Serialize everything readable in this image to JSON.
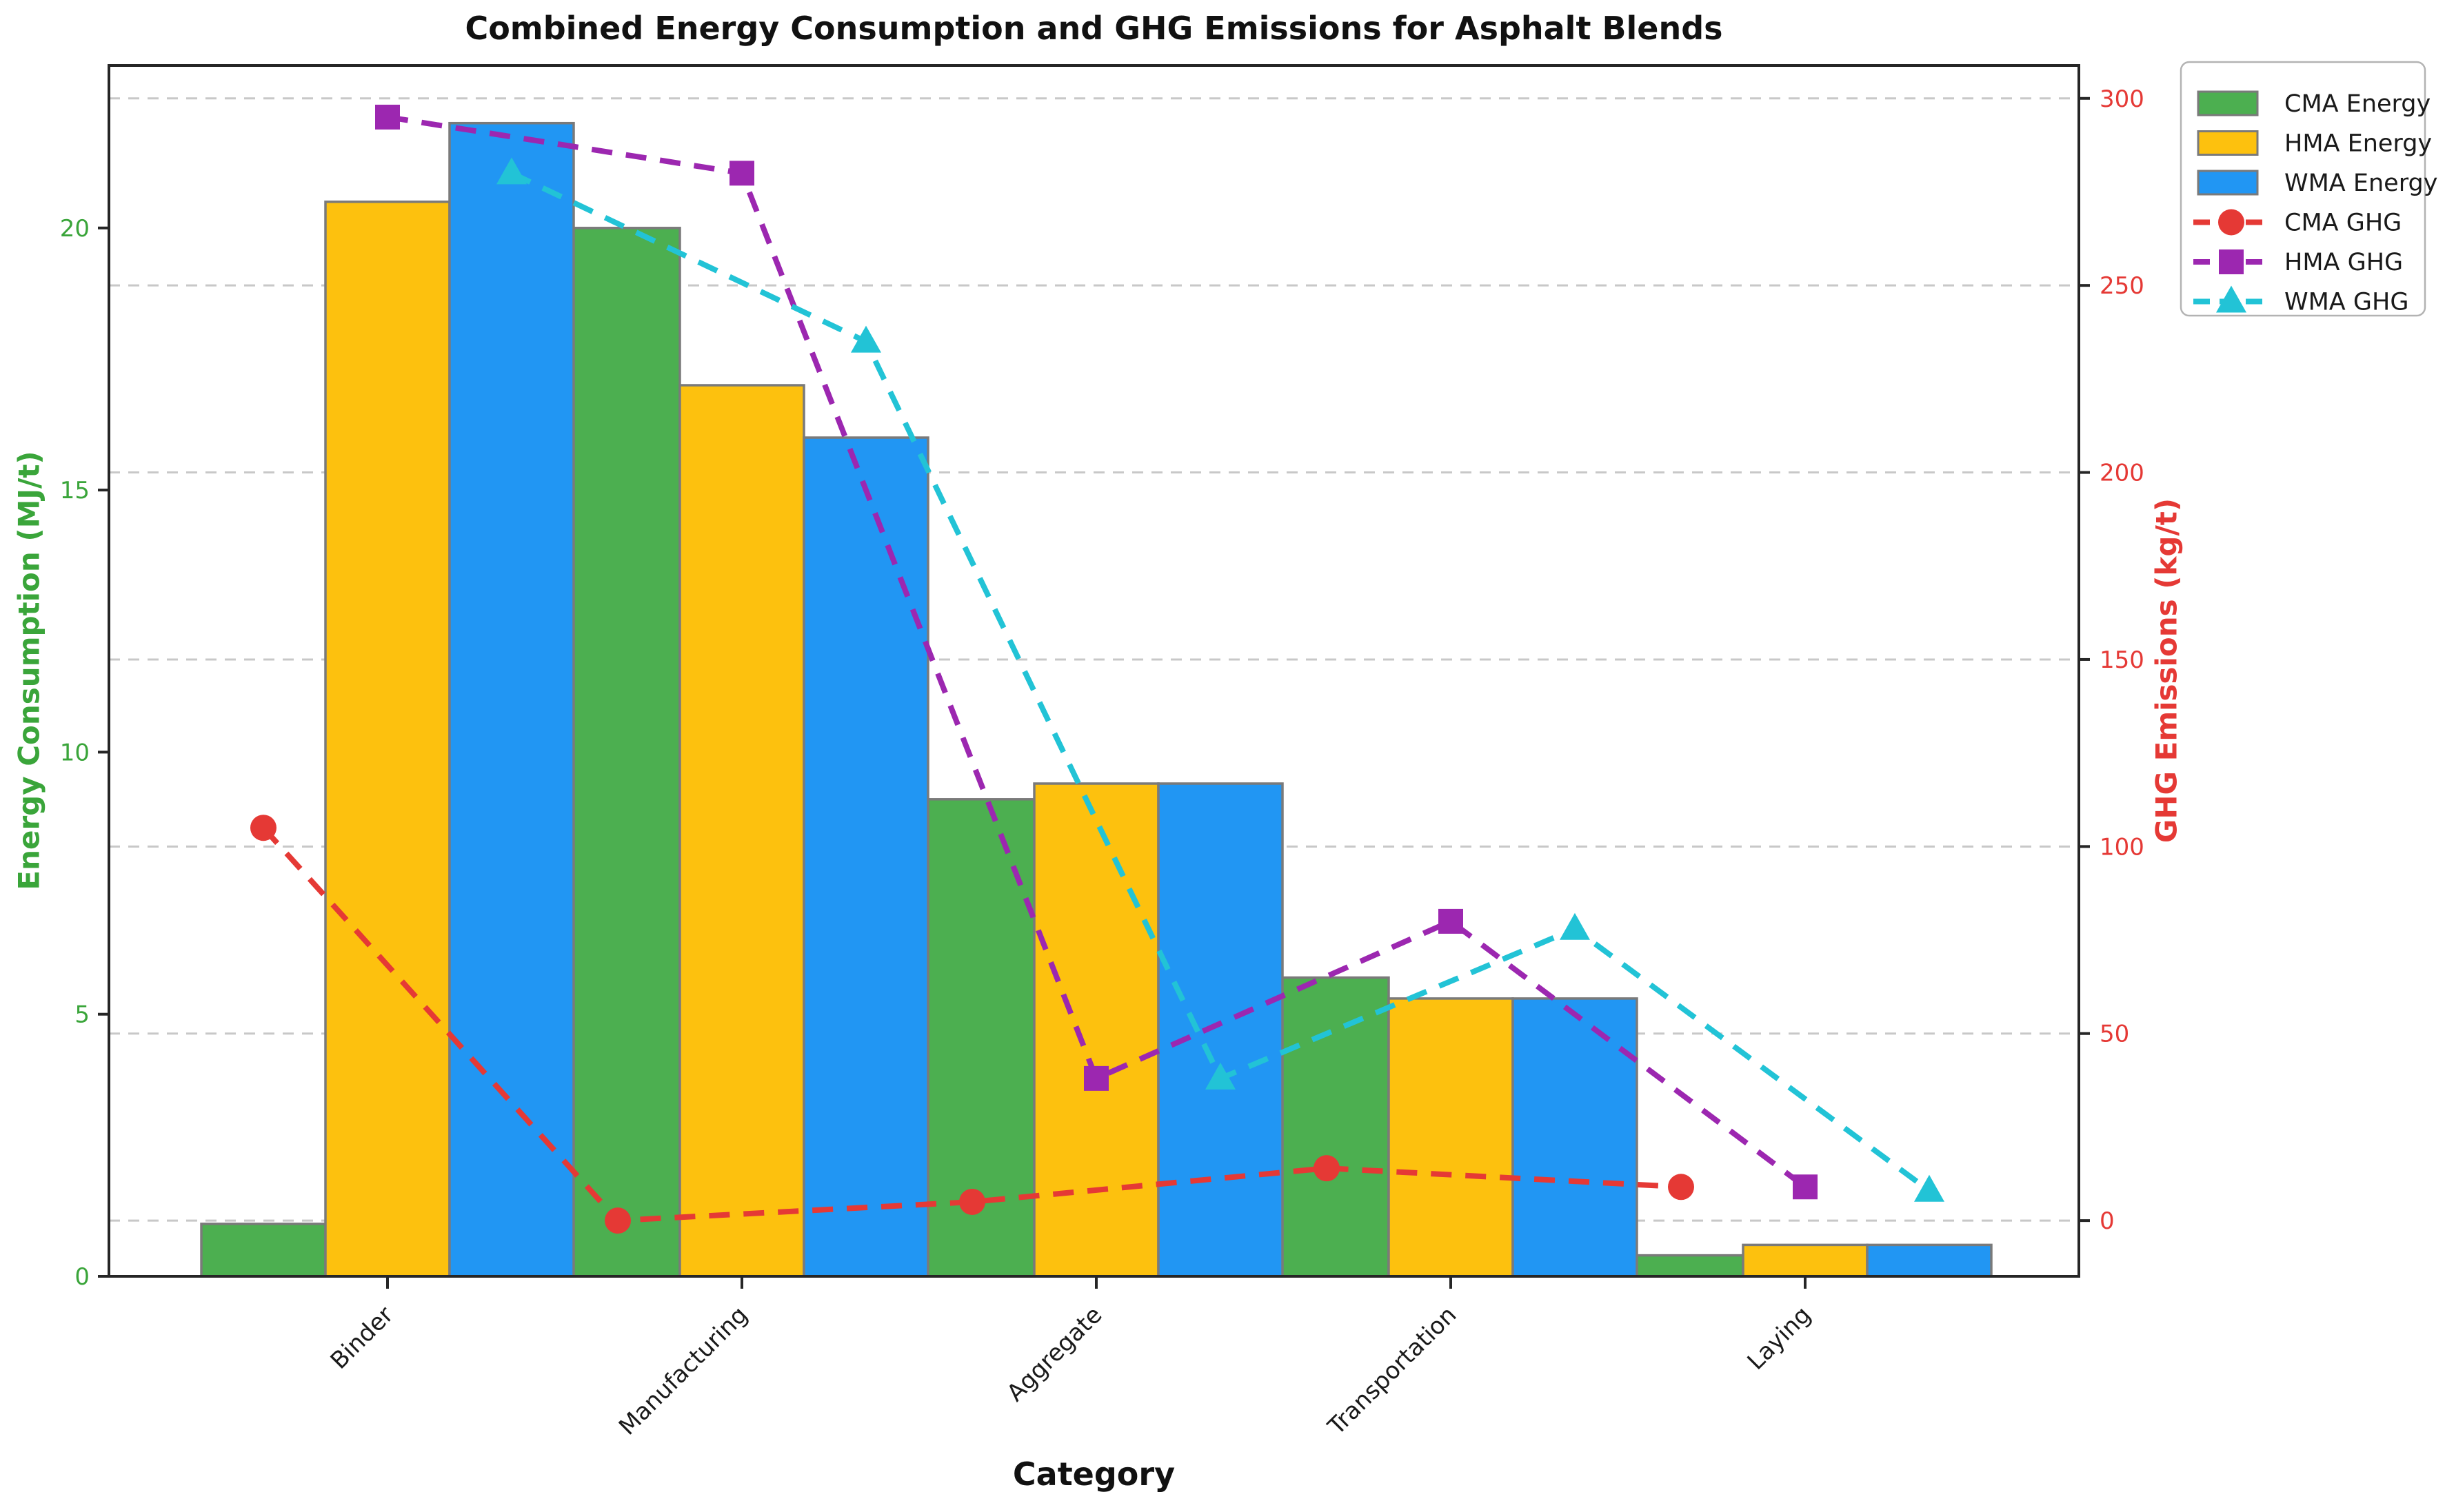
{
  "title": "Combined Energy Consumption and GHG Emissions for Asphalt Blends",
  "axes": {
    "x_label": "Category",
    "y_left_label": "Energy Consumption (MJ/t)",
    "y_right_label": "GHG Emissions (kg/t)",
    "y_left_ticks": [
      0,
      5,
      10,
      15,
      20
    ],
    "y_right_ticks": [
      0,
      50,
      100,
      150,
      200,
      250,
      300
    ],
    "y_left_tick_color": "#3aa53a",
    "y_right_tick_color": "#e53935",
    "grid": "horizontal dashed gridlines aligned to right-axis ticks"
  },
  "chart_data": {
    "type": "combo: grouped bar (left axis) + dashed marker lines (right axis)",
    "categories": [
      "Binder",
      "Manufacturing",
      "Aggregate",
      "Transportation",
      "Laying"
    ],
    "y_left_range": [
      0,
      23.1
    ],
    "y_right_range": [
      -14.9,
      308.8
    ],
    "bar_series": [
      {
        "name": "CMA Energy",
        "color": "#4caf50",
        "values": [
          1.0,
          20.0,
          9.1,
          5.7,
          0.4
        ]
      },
      {
        "name": "HMA Energy",
        "color": "#fdc10e",
        "values": [
          20.5,
          17.0,
          9.4,
          5.3,
          0.6
        ]
      },
      {
        "name": "WMA Energy",
        "color": "#2196f3",
        "values": [
          22.0,
          16.0,
          9.4,
          5.3,
          0.6
        ]
      }
    ],
    "line_series": [
      {
        "name": "CMA GHG",
        "color": "#e53935",
        "marker": "circle",
        "linestyle": "dashed",
        "values": [
          105,
          0,
          5,
          14,
          9
        ]
      },
      {
        "name": "HMA GHG",
        "color": "#9c27b0",
        "marker": "square",
        "linestyle": "dashed",
        "values": [
          295,
          280,
          38,
          80,
          9
        ]
      },
      {
        "name": "WMA GHG",
        "color": "#22c3d6",
        "marker": "triangle-up",
        "linestyle": "dashed",
        "values": [
          280,
          235,
          38,
          78,
          8
        ]
      }
    ]
  },
  "legend": {
    "position": "outside top-right",
    "items": [
      {
        "label": "CMA Energy",
        "swatch": "bar",
        "color": "#4caf50"
      },
      {
        "label": "HMA Energy",
        "swatch": "bar",
        "color": "#fdc10e"
      },
      {
        "label": "WMA Energy",
        "swatch": "bar",
        "color": "#2196f3"
      },
      {
        "label": "CMA GHG",
        "swatch": "line",
        "color": "#e53935",
        "marker": "circle"
      },
      {
        "label": "HMA GHG",
        "swatch": "line",
        "color": "#9c27b0",
        "marker": "square"
      },
      {
        "label": "WMA GHG",
        "swatch": "line",
        "color": "#22c3d6",
        "marker": "triangle-up"
      }
    ]
  },
  "style": {
    "bar_edge_color": "#7a7a7a",
    "grid_color": "#c8c8c8",
    "spine_color": "#262626",
    "legend_border_color": "#b3b3b3",
    "background": "#ffffff"
  }
}
